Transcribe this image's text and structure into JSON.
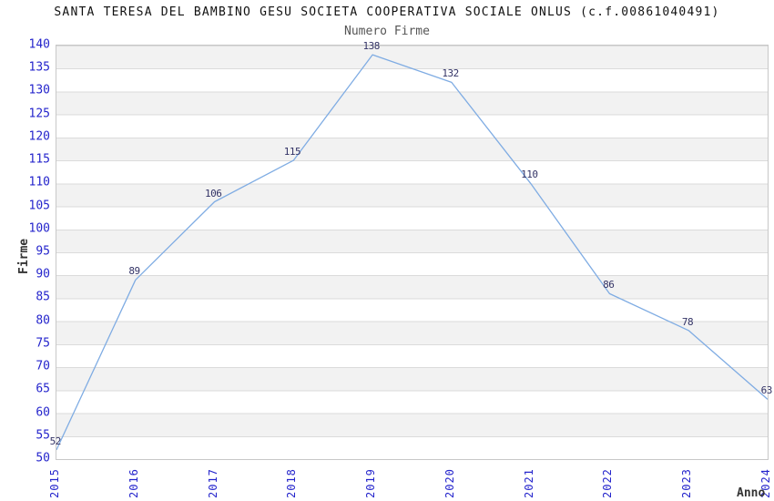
{
  "chart_data": {
    "type": "line",
    "title": "SANTA TERESA DEL BAMBINO GESU SOCIETA COOPERATIVA SOCIALE ONLUS (c.f.00861040491)",
    "subtitle": "Numero Firme",
    "xlabel": "Anno",
    "ylabel": "Firme",
    "categories": [
      "2015",
      "2016",
      "2017",
      "2018",
      "2019",
      "2020",
      "2021",
      "2022",
      "2023",
      "2024"
    ],
    "values": [
      52,
      89,
      106,
      115,
      138,
      132,
      110,
      86,
      78,
      63
    ],
    "ylim": [
      50,
      140
    ],
    "ytick_step": 5,
    "grid": "horizontal-bands-alternating",
    "legend": "none",
    "colors": {
      "line": "#7FACE3",
      "tick_label": "#2525CC",
      "value_label": "#333366",
      "band": "#F2F2F2",
      "band_alt": "#FFFFFF",
      "gridline": "#DBDBDB",
      "plot_border": "#C8C8C8",
      "title": "#111111",
      "subtitle": "#555555",
      "axis_label": "#333333"
    }
  }
}
